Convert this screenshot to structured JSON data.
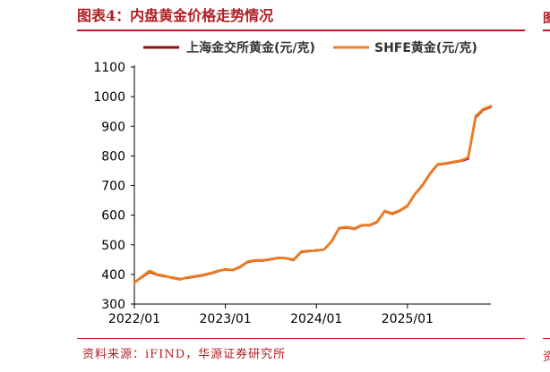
{
  "figure": {
    "title": "图表4：内盘黄金价格走势情况",
    "source": "资料来源：iFIND，华源证券研究所",
    "accent_color": "#b01e23"
  },
  "chart_data": {
    "type": "line",
    "title": "",
    "xlabel": "",
    "ylabel": "",
    "ylim": [
      300,
      1100
    ],
    "yticks": [
      "300",
      "400",
      "500",
      "600",
      "700",
      "800",
      "900",
      "1000",
      "1100"
    ],
    "xticks": [
      "2022/01",
      "2023/01",
      "2024/01",
      "2025/01"
    ],
    "xlim": [
      "2022/01",
      "2025/12"
    ],
    "grid": false,
    "legend": "top",
    "series": [
      {
        "name": "上海金交所黄金(元/克)",
        "color": "#8b0f12",
        "x": [
          "2022/01",
          "2022/02",
          "2022/03",
          "2022/04",
          "2022/05",
          "2022/06",
          "2022/07",
          "2022/08",
          "2022/09",
          "2022/10",
          "2022/11",
          "2022/12",
          "2023/01",
          "2023/02",
          "2023/03",
          "2023/04",
          "2023/05",
          "2023/06",
          "2023/07",
          "2023/08",
          "2023/09",
          "2023/10",
          "2023/11",
          "2023/12",
          "2024/01",
          "2024/02",
          "2024/03",
          "2024/04",
          "2024/05",
          "2024/06",
          "2024/07",
          "2024/08",
          "2024/09",
          "2024/10",
          "2024/11",
          "2024/12",
          "2025/01",
          "2025/02",
          "2025/03",
          "2025/04",
          "2025/05",
          "2025/06",
          "2025/07",
          "2025/08",
          "2025/09",
          "2025/10",
          "2025/11",
          "2025/12"
        ],
        "values": [
          374,
          390,
          408,
          398,
          393,
          390,
          385,
          388,
          392,
          396,
          402,
          410,
          418,
          414,
          425,
          442,
          446,
          446,
          450,
          455,
          454,
          448,
          475,
          478,
          482,
          483,
          510,
          555,
          558,
          553,
          565,
          565,
          576,
          612,
          604,
          614,
          630,
          670,
          700,
          740,
          770,
          773,
          778,
          782,
          790,
          930,
          955,
          965
        ]
      },
      {
        "name": "SHFE黄金(元/克)",
        "color": "#ee7d22",
        "x": [
          "2022/01",
          "2022/02",
          "2022/03",
          "2022/04",
          "2022/05",
          "2022/06",
          "2022/07",
          "2022/08",
          "2022/09",
          "2022/10",
          "2022/11",
          "2022/12",
          "2023/01",
          "2023/02",
          "2023/03",
          "2023/04",
          "2023/05",
          "2023/06",
          "2023/07",
          "2023/08",
          "2023/09",
          "2023/10",
          "2023/11",
          "2023/12",
          "2024/01",
          "2024/02",
          "2024/03",
          "2024/04",
          "2024/05",
          "2024/06",
          "2024/07",
          "2024/08",
          "2024/09",
          "2024/10",
          "2024/11",
          "2024/12",
          "2025/01",
          "2025/02",
          "2025/03",
          "2025/04",
          "2025/05",
          "2025/06",
          "2025/07",
          "2025/08",
          "2025/09",
          "2025/10",
          "2025/11",
          "2025/12"
        ],
        "values": [
          372,
          392,
          412,
          400,
          395,
          388,
          383,
          390,
          394,
          398,
          404,
          412,
          416,
          415,
          427,
          444,
          448,
          448,
          452,
          456,
          455,
          450,
          477,
          480,
          480,
          484,
          512,
          557,
          560,
          555,
          567,
          567,
          578,
          614,
          606,
          616,
          632,
          672,
          702,
          742,
          772,
          775,
          780,
          784,
          795,
          935,
          958,
          968
        ]
      }
    ]
  }
}
